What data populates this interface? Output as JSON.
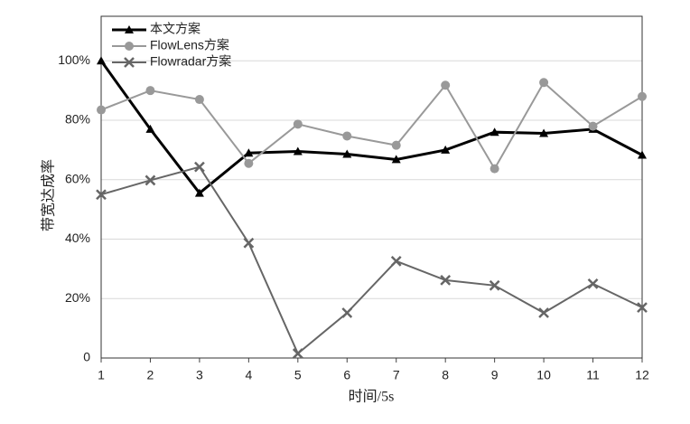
{
  "chart_data": {
    "type": "line",
    "x_label": "时间/5s",
    "y_label": "带宽达成率",
    "x": [
      1,
      2,
      3,
      4,
      5,
      6,
      7,
      8,
      9,
      10,
      11,
      12
    ],
    "xlim": [
      1,
      12
    ],
    "xticks": [
      1,
      2,
      3,
      4,
      5,
      6,
      7,
      8,
      9,
      10,
      11,
      12
    ],
    "ylim": [
      0,
      115
    ],
    "yticks": [
      0,
      {
        "value": 20,
        "label": "20%"
      },
      {
        "value": 40,
        "label": "40%"
      },
      {
        "value": 60,
        "label": "60%"
      },
      {
        "value": 80,
        "label": "80%"
      },
      {
        "value": 100,
        "label": "100%"
      }
    ],
    "grid": true,
    "legend": "top-left",
    "series": [
      {
        "name": "本文方案",
        "color": "#000000",
        "marker": "triangle",
        "values": [
          100,
          77,
          55.5,
          69,
          69.5,
          68.6,
          66.8,
          70,
          76,
          75.6,
          77,
          68.3
        ]
      },
      {
        "name": "FlowLens方案",
        "color": "#999999",
        "marker": "circle",
        "values": [
          83.5,
          90,
          87,
          65.5,
          78.7,
          74.7,
          71.6,
          91.8,
          63.7,
          92.7,
          78,
          88
        ]
      },
      {
        "name": "Flowradar方案",
        "color": "#666666",
        "marker": "x",
        "values": [
          55,
          59.8,
          64.3,
          38.7,
          1.5,
          15.2,
          32.6,
          26.2,
          24.4,
          15.2,
          25,
          17
        ]
      }
    ]
  }
}
